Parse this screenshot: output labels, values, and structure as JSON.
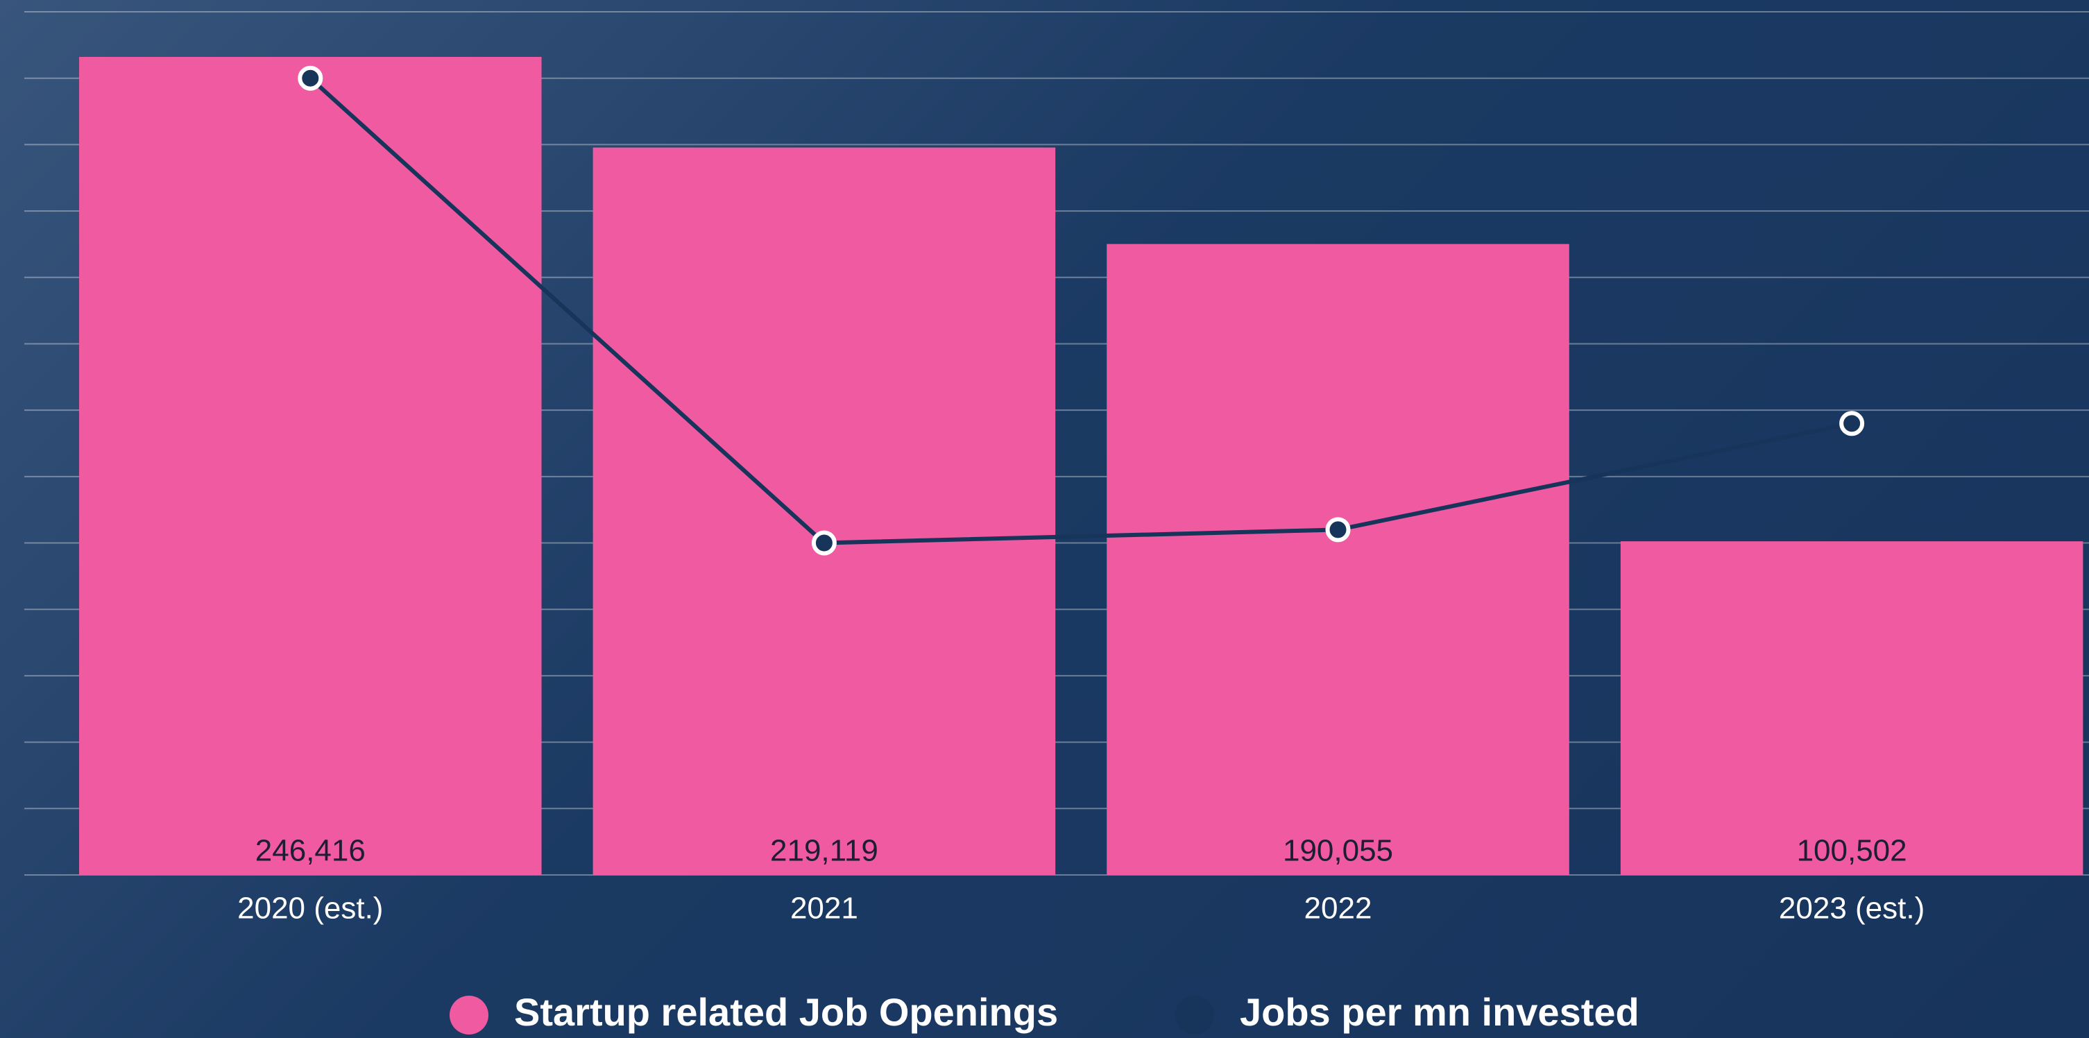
{
  "chart_data": {
    "type": "bar",
    "categories": [
      "2020 (est.)",
      "2021",
      "2022",
      "2023 (est.)"
    ],
    "series": [
      {
        "name": "Startup related Job Openings",
        "type": "bar",
        "color": "#ef5aa0",
        "values": [
          246416,
          219119,
          190055,
          100502
        ],
        "value_labels": [
          "246,416",
          "219,119",
          "190,055",
          "100,502"
        ]
      },
      {
        "name": "Jobs per mn invested",
        "type": "line",
        "axis": "y2",
        "color": "#17345a",
        "values": [
          12.0,
          5.0,
          5.2,
          6.8
        ]
      }
    ],
    "ylim": [
      0,
      260000
    ],
    "yticks": [
      0,
      20000,
      40000,
      60000,
      80000,
      100000,
      120000,
      140000,
      160000,
      180000,
      200000,
      220000,
      240000,
      260000
    ],
    "y2lim": [
      0,
      13
    ],
    "grid": true,
    "legend": "bottom"
  }
}
